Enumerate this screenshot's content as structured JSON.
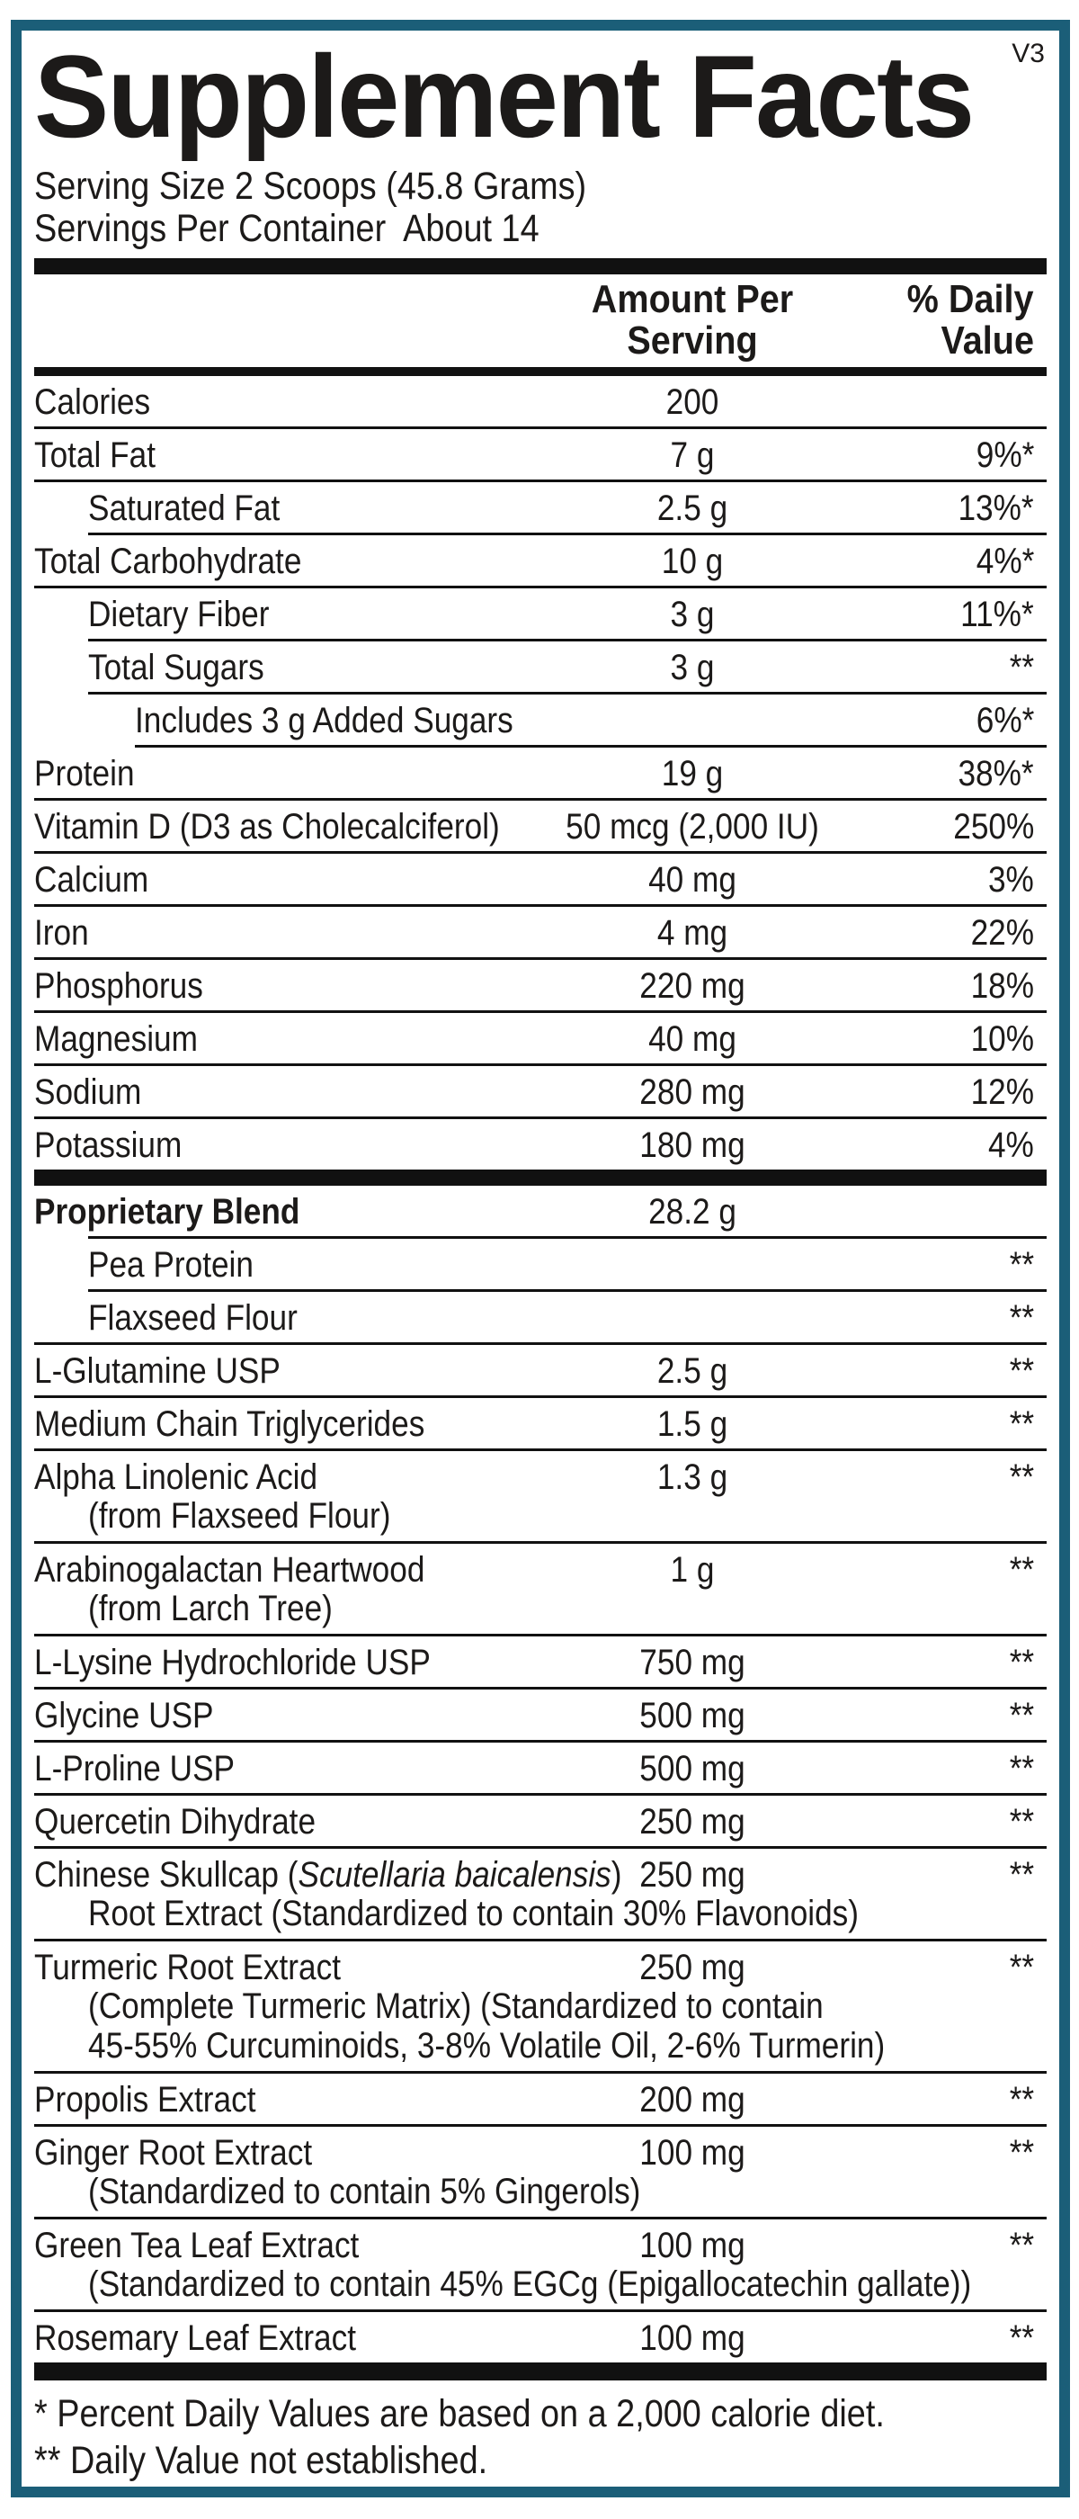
{
  "colors": {
    "frame": "#1b5e78",
    "bar": "#111111",
    "text": "#1c1a19"
  },
  "version": "V3",
  "title": "Supplement Facts",
  "serving": {
    "line1": "Serving Size 2 Scoops (45.8 Grams)",
    "line2": "Servings Per Container  About 14"
  },
  "columns": {
    "amount_header": [
      "Amount Per",
      "Serving"
    ],
    "dv_header": [
      "% Daily",
      "Value"
    ]
  },
  "sections": [
    {
      "rows": [
        {
          "label": "Calories",
          "amount": "200",
          "dv": "",
          "indent": 0,
          "rule": 0
        },
        {
          "label": "Total Fat",
          "amount": "7 g",
          "dv": "9%*",
          "indent": 0,
          "rule": 0
        },
        {
          "label": "Saturated Fat",
          "amount": "2.5 g",
          "dv": "13%*",
          "indent": 1,
          "rule": 1
        },
        {
          "label": "Total Carbohydrate",
          "amount": "10 g",
          "dv": "4%*",
          "indent": 0,
          "rule": 0
        },
        {
          "label": "Dietary Fiber",
          "amount": "3 g",
          "dv": "11%*",
          "indent": 1,
          "rule": 1
        },
        {
          "label": "Total Sugars",
          "amount": "3 g",
          "dv": "**",
          "indent": 1,
          "rule": 1
        },
        {
          "label": "Includes 3 g Added Sugars",
          "amount": "",
          "dv": "6%*",
          "indent": 2,
          "rule": 2
        },
        {
          "label": "Protein",
          "amount": "19 g",
          "dv": "38%*",
          "indent": 0,
          "rule": 0
        },
        {
          "label": "Vitamin D (D3 as Cholecalciferol)",
          "amount": "50 mcg (2,000 IU)",
          "dv": "250%",
          "indent": 0,
          "rule": 0
        },
        {
          "label": "Calcium",
          "amount": "40 mg",
          "dv": "3%",
          "indent": 0,
          "rule": 0
        },
        {
          "label": "Iron",
          "amount": "4 mg",
          "dv": "22%",
          "indent": 0,
          "rule": 0
        },
        {
          "label": "Phosphorus",
          "amount": "220 mg",
          "dv": "18%",
          "indent": 0,
          "rule": 0
        },
        {
          "label": "Magnesium",
          "amount": "40 mg",
          "dv": "10%",
          "indent": 0,
          "rule": 0
        },
        {
          "label": "Sodium",
          "amount": "280 mg",
          "dv": "12%",
          "indent": 0,
          "rule": 0
        },
        {
          "label": "Potassium",
          "amount": "180 mg",
          "dv": "4%",
          "indent": 0,
          "rule": null
        }
      ]
    },
    {
      "rows": [
        {
          "label": "Proprietary Blend",
          "bold": true,
          "amount": "28.2 g",
          "dv": "",
          "indent": 0,
          "rule": 1
        },
        {
          "label": "Pea Protein",
          "amount": "",
          "dv": "**",
          "indent": 1,
          "rule": 1
        },
        {
          "label": "Flaxseed Flour",
          "amount": "",
          "dv": "**",
          "indent": 1,
          "rule": 0
        },
        {
          "label": "L-Glutamine USP",
          "amount": "2.5 g",
          "dv": "**",
          "indent": 0,
          "rule": 0
        },
        {
          "label": "Medium Chain Triglycerides",
          "amount": "1.5 g",
          "dv": "**",
          "indent": 0,
          "rule": 0
        },
        {
          "label": "Alpha Linolenic Acid",
          "sub": [
            "(from Flaxseed Flour)"
          ],
          "amount": "1.3 g",
          "dv": "**",
          "indent": 0,
          "rule": 0
        },
        {
          "label": "Arabinogalactan Heartwood",
          "sub": [
            "(from Larch Tree)"
          ],
          "amount": "1 g",
          "dv": "**",
          "indent": 0,
          "rule": 0
        },
        {
          "label": "L-Lysine Hydrochloride USP",
          "amount": "750 mg",
          "dv": "**",
          "indent": 0,
          "rule": 0
        },
        {
          "label": "Glycine USP",
          "amount": "500 mg",
          "dv": "**",
          "indent": 0,
          "rule": 0
        },
        {
          "label": "L-Proline USP",
          "amount": "500 mg",
          "dv": "**",
          "indent": 0,
          "rule": 0
        },
        {
          "label": "Quercetin Dihydrate",
          "amount": "250 mg",
          "dv": "**",
          "indent": 0,
          "rule": 0
        },
        {
          "segments": [
            {
              "text": "Chinese Skullcap (",
              "italic": false
            },
            {
              "text": "Scutellaria baicalensis",
              "italic": true
            },
            {
              "text": ")",
              "italic": false
            }
          ],
          "sub": [
            "Root Extract (Standardized to contain 30% Flavonoids)"
          ],
          "amount": "250 mg",
          "dv": "**",
          "indent": 0,
          "rule": 0
        },
        {
          "label": "Turmeric Root Extract",
          "sub": [
            "(Complete Turmeric Matrix) (Standardized to contain",
            "45-55% Curcuminoids, 3-8% Volatile Oil, 2-6% Turmerin)"
          ],
          "amount": "250 mg",
          "dv": "**",
          "indent": 0,
          "rule": 0
        },
        {
          "label": "Propolis Extract",
          "amount": "200 mg",
          "dv": "**",
          "indent": 0,
          "rule": 0
        },
        {
          "label": "Ginger Root Extract",
          "sub": [
            "(Standardized to contain 5% Gingerols)"
          ],
          "amount": "100 mg",
          "dv": "**",
          "indent": 0,
          "rule": 0
        },
        {
          "label": "Green Tea Leaf Extract",
          "sub": [
            "(Standardized to contain 45% EGCg (Epigallocatechin gallate))"
          ],
          "amount": "100 mg",
          "dv": "**",
          "indent": 0,
          "rule": 0
        },
        {
          "label": "Rosemary Leaf Extract",
          "amount": "100 mg",
          "dv": "**",
          "indent": 0,
          "rule": null
        }
      ]
    }
  ],
  "footnotes": [
    "* Percent Daily Values are based on a 2,000 calorie diet.",
    "** Daily Value not established."
  ]
}
